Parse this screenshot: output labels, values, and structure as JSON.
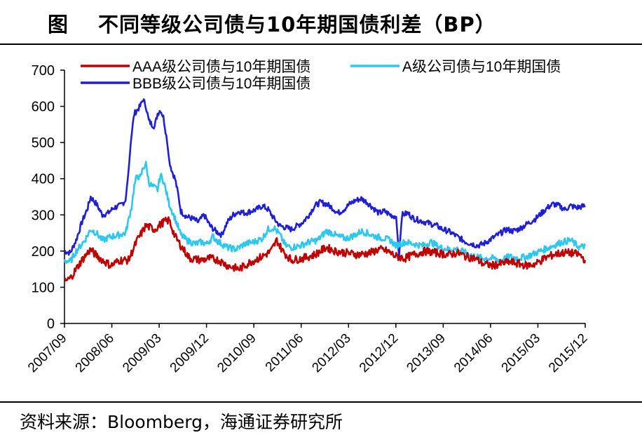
{
  "title": {
    "label": "图",
    "text": "不同等级公司债与10年期国债利差（BP）"
  },
  "source": "资料来源：Bloomberg，海通证券研究所",
  "chart_data": {
    "type": "line",
    "title": "不同等级公司债与10年期国债利差（BP）",
    "xlabel": "",
    "ylabel": "",
    "ylim": [
      0,
      700
    ],
    "yticks": [
      0,
      100,
      200,
      300,
      400,
      500,
      600,
      700
    ],
    "x_tick_labels": [
      "2007/09",
      "2008/06",
      "2009/03",
      "2009/12",
      "2010/09",
      "2011/06",
      "2012/03",
      "2012/12",
      "2013/09",
      "2014/06",
      "2015/03",
      "2015/12"
    ],
    "legend_position": "top",
    "series": [
      {
        "name": "AAA级公司债与10年期国债",
        "color": "#c00000",
        "values": [
          {
            "t": 0,
            "v": 115
          },
          {
            "t": 2,
            "v": 125
          },
          {
            "t": 4,
            "v": 150
          },
          {
            "t": 6,
            "v": 175
          },
          {
            "t": 9,
            "v": 205
          },
          {
            "t": 10,
            "v": 195
          },
          {
            "t": 13,
            "v": 175
          },
          {
            "t": 16,
            "v": 160
          },
          {
            "t": 19,
            "v": 175
          },
          {
            "t": 22,
            "v": 175
          },
          {
            "t": 25,
            "v": 230
          },
          {
            "t": 28,
            "v": 270
          },
          {
            "t": 31,
            "v": 260
          },
          {
            "t": 34,
            "v": 280
          },
          {
            "t": 36,
            "v": 285
          },
          {
            "t": 38,
            "v": 240
          },
          {
            "t": 40,
            "v": 215
          },
          {
            "t": 43,
            "v": 180
          },
          {
            "t": 47,
            "v": 175
          },
          {
            "t": 50,
            "v": 180
          },
          {
            "t": 53,
            "v": 175
          },
          {
            "t": 56,
            "v": 160
          },
          {
            "t": 60,
            "v": 150
          },
          {
            "t": 64,
            "v": 170
          },
          {
            "t": 68,
            "v": 185
          },
          {
            "t": 71,
            "v": 200
          },
          {
            "t": 73,
            "v": 230
          },
          {
            "t": 75,
            "v": 200
          },
          {
            "t": 78,
            "v": 175
          },
          {
            "t": 82,
            "v": 180
          },
          {
            "t": 86,
            "v": 190
          },
          {
            "t": 90,
            "v": 210
          },
          {
            "t": 93,
            "v": 200
          },
          {
            "t": 97,
            "v": 195
          },
          {
            "t": 101,
            "v": 190
          },
          {
            "t": 105,
            "v": 195
          },
          {
            "t": 108,
            "v": 205
          },
          {
            "t": 111,
            "v": 200
          },
          {
            "t": 114,
            "v": 185
          },
          {
            "t": 117,
            "v": 180
          },
          {
            "t": 120,
            "v": 190
          },
          {
            "t": 124,
            "v": 200
          },
          {
            "t": 128,
            "v": 195
          },
          {
            "t": 132,
            "v": 190
          },
          {
            "t": 135,
            "v": 195
          },
          {
            "t": 138,
            "v": 185
          },
          {
            "t": 141,
            "v": 180
          },
          {
            "t": 144,
            "v": 165
          },
          {
            "t": 147,
            "v": 160
          },
          {
            "t": 150,
            "v": 165
          },
          {
            "t": 153,
            "v": 170
          },
          {
            "t": 156,
            "v": 165
          },
          {
            "t": 159,
            "v": 160
          },
          {
            "t": 162,
            "v": 165
          },
          {
            "t": 165,
            "v": 180
          },
          {
            "t": 168,
            "v": 190
          },
          {
            "t": 171,
            "v": 195
          },
          {
            "t": 174,
            "v": 195
          },
          {
            "t": 177,
            "v": 190
          },
          {
            "t": 179,
            "v": 175
          }
        ]
      },
      {
        "name": "A级公司债与10年期国债",
        "color": "#2ec8ee",
        "values": [
          {
            "t": 0,
            "v": 175
          },
          {
            "t": 2,
            "v": 170
          },
          {
            "t": 4,
            "v": 200
          },
          {
            "t": 7,
            "v": 230
          },
          {
            "t": 9,
            "v": 260
          },
          {
            "t": 11,
            "v": 250
          },
          {
            "t": 13,
            "v": 230
          },
          {
            "t": 16,
            "v": 240
          },
          {
            "t": 19,
            "v": 245
          },
          {
            "t": 21,
            "v": 250
          },
          {
            "t": 23,
            "v": 320
          },
          {
            "t": 24,
            "v": 380
          },
          {
            "t": 25,
            "v": 410
          },
          {
            "t": 26,
            "v": 400
          },
          {
            "t": 27,
            "v": 430
          },
          {
            "t": 28,
            "v": 440
          },
          {
            "t": 29,
            "v": 390
          },
          {
            "t": 30,
            "v": 380
          },
          {
            "t": 32,
            "v": 370
          },
          {
            "t": 33,
            "v": 410
          },
          {
            "t": 34,
            "v": 395
          },
          {
            "t": 36,
            "v": 330
          },
          {
            "t": 38,
            "v": 290
          },
          {
            "t": 40,
            "v": 245
          },
          {
            "t": 42,
            "v": 230
          },
          {
            "t": 45,
            "v": 220
          },
          {
            "t": 47,
            "v": 225
          },
          {
            "t": 49,
            "v": 220
          },
          {
            "t": 51,
            "v": 240
          },
          {
            "t": 53,
            "v": 225
          },
          {
            "t": 56,
            "v": 210
          },
          {
            "t": 59,
            "v": 205
          },
          {
            "t": 62,
            "v": 220
          },
          {
            "t": 65,
            "v": 225
          },
          {
            "t": 68,
            "v": 235
          },
          {
            "t": 70,
            "v": 260
          },
          {
            "t": 72,
            "v": 265
          },
          {
            "t": 74,
            "v": 245
          },
          {
            "t": 76,
            "v": 215
          },
          {
            "t": 78,
            "v": 210
          },
          {
            "t": 81,
            "v": 215
          },
          {
            "t": 84,
            "v": 225
          },
          {
            "t": 87,
            "v": 230
          },
          {
            "t": 90,
            "v": 255
          },
          {
            "t": 92,
            "v": 250
          },
          {
            "t": 94,
            "v": 240
          },
          {
            "t": 97,
            "v": 235
          },
          {
            "t": 100,
            "v": 245
          },
          {
            "t": 102,
            "v": 255
          },
          {
            "t": 104,
            "v": 250
          },
          {
            "t": 107,
            "v": 240
          },
          {
            "t": 110,
            "v": 235
          },
          {
            "t": 112,
            "v": 230
          },
          {
            "t": 114,
            "v": 215
          },
          {
            "t": 117,
            "v": 225
          },
          {
            "t": 120,
            "v": 220
          },
          {
            "t": 123,
            "v": 215
          },
          {
            "t": 126,
            "v": 225
          },
          {
            "t": 129,
            "v": 210
          },
          {
            "t": 132,
            "v": 205
          },
          {
            "t": 135,
            "v": 205
          },
          {
            "t": 138,
            "v": 195
          },
          {
            "t": 141,
            "v": 185
          },
          {
            "t": 144,
            "v": 180
          },
          {
            "t": 147,
            "v": 180
          },
          {
            "t": 150,
            "v": 175
          },
          {
            "t": 153,
            "v": 185
          },
          {
            "t": 156,
            "v": 180
          },
          {
            "t": 159,
            "v": 185
          },
          {
            "t": 162,
            "v": 195
          },
          {
            "t": 165,
            "v": 205
          },
          {
            "t": 168,
            "v": 215
          },
          {
            "t": 171,
            "v": 225
          },
          {
            "t": 174,
            "v": 230
          },
          {
            "t": 177,
            "v": 210
          },
          {
            "t": 179,
            "v": 215
          }
        ]
      },
      {
        "name": "BBB级公司债与10年期国债",
        "color": "#1f1fd6",
        "values": [
          {
            "t": 0,
            "v": 200
          },
          {
            "t": 2,
            "v": 195
          },
          {
            "t": 4,
            "v": 230
          },
          {
            "t": 6,
            "v": 280
          },
          {
            "t": 8,
            "v": 320
          },
          {
            "t": 9,
            "v": 350
          },
          {
            "t": 11,
            "v": 330
          },
          {
            "t": 13,
            "v": 300
          },
          {
            "t": 15,
            "v": 305
          },
          {
            "t": 17,
            "v": 320
          },
          {
            "t": 19,
            "v": 325
          },
          {
            "t": 21,
            "v": 340
          },
          {
            "t": 22,
            "v": 420
          },
          {
            "t": 23,
            "v": 520
          },
          {
            "t": 24,
            "v": 580
          },
          {
            "t": 25,
            "v": 590
          },
          {
            "t": 26,
            "v": 600
          },
          {
            "t": 27,
            "v": 620
          },
          {
            "t": 28,
            "v": 600
          },
          {
            "t": 29,
            "v": 560
          },
          {
            "t": 30,
            "v": 550
          },
          {
            "t": 31,
            "v": 545
          },
          {
            "t": 32,
            "v": 580
          },
          {
            "t": 33,
            "v": 590
          },
          {
            "t": 34,
            "v": 570
          },
          {
            "t": 35,
            "v": 520
          },
          {
            "t": 36,
            "v": 450
          },
          {
            "t": 37,
            "v": 420
          },
          {
            "t": 38,
            "v": 400
          },
          {
            "t": 39,
            "v": 360
          },
          {
            "t": 40,
            "v": 310
          },
          {
            "t": 42,
            "v": 295
          },
          {
            "t": 44,
            "v": 290
          },
          {
            "t": 46,
            "v": 280
          },
          {
            "t": 48,
            "v": 300
          },
          {
            "t": 50,
            "v": 270
          },
          {
            "t": 52,
            "v": 255
          },
          {
            "t": 54,
            "v": 245
          },
          {
            "t": 56,
            "v": 280
          },
          {
            "t": 58,
            "v": 300
          },
          {
            "t": 60,
            "v": 310
          },
          {
            "t": 62,
            "v": 305
          },
          {
            "t": 64,
            "v": 310
          },
          {
            "t": 66,
            "v": 315
          },
          {
            "t": 68,
            "v": 325
          },
          {
            "t": 70,
            "v": 315
          },
          {
            "t": 72,
            "v": 290
          },
          {
            "t": 74,
            "v": 270
          },
          {
            "t": 76,
            "v": 265
          },
          {
            "t": 78,
            "v": 260
          },
          {
            "t": 80,
            "v": 270
          },
          {
            "t": 82,
            "v": 280
          },
          {
            "t": 84,
            "v": 300
          },
          {
            "t": 86,
            "v": 325
          },
          {
            "t": 88,
            "v": 335
          },
          {
            "t": 90,
            "v": 330
          },
          {
            "t": 92,
            "v": 320
          },
          {
            "t": 94,
            "v": 305
          },
          {
            "t": 96,
            "v": 315
          },
          {
            "t": 98,
            "v": 330
          },
          {
            "t": 100,
            "v": 340
          },
          {
            "t": 102,
            "v": 345
          },
          {
            "t": 104,
            "v": 335
          },
          {
            "t": 106,
            "v": 320
          },
          {
            "t": 108,
            "v": 305
          },
          {
            "t": 110,
            "v": 310
          },
          {
            "t": 112,
            "v": 300
          },
          {
            "t": 114,
            "v": 295
          },
          {
            "t": 115,
            "v": 185
          },
          {
            "t": 116,
            "v": 300
          },
          {
            "t": 118,
            "v": 305
          },
          {
            "t": 120,
            "v": 290
          },
          {
            "t": 122,
            "v": 285
          },
          {
            "t": 124,
            "v": 280
          },
          {
            "t": 126,
            "v": 275
          },
          {
            "t": 128,
            "v": 270
          },
          {
            "t": 130,
            "v": 260
          },
          {
            "t": 132,
            "v": 255
          },
          {
            "t": 134,
            "v": 245
          },
          {
            "t": 136,
            "v": 235
          },
          {
            "t": 138,
            "v": 225
          },
          {
            "t": 140,
            "v": 220
          },
          {
            "t": 142,
            "v": 215
          },
          {
            "t": 144,
            "v": 220
          },
          {
            "t": 146,
            "v": 230
          },
          {
            "t": 148,
            "v": 240
          },
          {
            "t": 150,
            "v": 250
          },
          {
            "t": 152,
            "v": 260
          },
          {
            "t": 154,
            "v": 255
          },
          {
            "t": 156,
            "v": 260
          },
          {
            "t": 158,
            "v": 270
          },
          {
            "t": 160,
            "v": 280
          },
          {
            "t": 162,
            "v": 290
          },
          {
            "t": 164,
            "v": 305
          },
          {
            "t": 166,
            "v": 320
          },
          {
            "t": 168,
            "v": 330
          },
          {
            "t": 170,
            "v": 325
          },
          {
            "t": 172,
            "v": 315
          },
          {
            "t": 174,
            "v": 325
          },
          {
            "t": 176,
            "v": 320
          },
          {
            "t": 179,
            "v": 325
          }
        ]
      }
    ]
  }
}
